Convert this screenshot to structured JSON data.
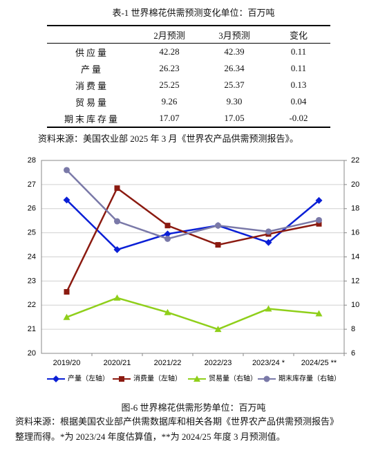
{
  "table": {
    "title": "表-1 世界棉花供需预测变化单位：百万吨",
    "header": [
      "",
      "2月预测",
      "3月预测",
      "变化"
    ],
    "rows": [
      [
        "供应量",
        "42.28",
        "42.39",
        "0.11"
      ],
      [
        "产量",
        "26.23",
        "26.34",
        "0.11"
      ],
      [
        "消费量",
        "25.25",
        "25.37",
        "0.13"
      ],
      [
        "贸易量",
        "9.26",
        "9.30",
        "0.04"
      ],
      [
        "期末库存量",
        "17.07",
        "17.05",
        "-0.02"
      ]
    ],
    "source": "资料来源：美国农业部 2025 年 3 月《世界农产品供需预测报告》。"
  },
  "chart_data": {
    "type": "line",
    "categories": [
      "2019/20",
      "2020/21",
      "2021/22",
      "2022/23",
      "2023/24 *",
      "2024/25 **"
    ],
    "ylim": [
      20,
      28
    ],
    "yticks": [
      20,
      21,
      22,
      23,
      24,
      25,
      26,
      27,
      28
    ],
    "y2lim": [
      6,
      22
    ],
    "y2ticks": [
      6,
      8,
      10,
      12,
      14,
      16,
      18,
      20,
      22
    ],
    "grid": true,
    "series": [
      {
        "name": "产量（左轴）",
        "color": "#0a1fd6",
        "marker": "diamond",
        "values": [
          26.36,
          24.3,
          24.95,
          25.3,
          24.6,
          26.34
        ]
      },
      {
        "name": "消费量（左轴）",
        "color": "#8b1a10",
        "marker": "square",
        "values": [
          22.55,
          26.85,
          25.3,
          24.5,
          24.95,
          25.37
        ]
      },
      {
        "name": "贸易量（右轴）",
        "color": "#8fcf1a",
        "marker": "triangle",
        "axis": "y2",
        "values": [
          9.0,
          10.6,
          9.4,
          8.0,
          9.7,
          9.3
        ]
      },
      {
        "name": "期末库存量（右轴）",
        "color": "#7a79a8",
        "marker": "circle",
        "axis": "y2",
        "values": [
          21.2,
          16.95,
          15.5,
          16.6,
          16.1,
          17.05
        ]
      }
    ]
  },
  "caption": {
    "title": "图-6 世界棉花供需形势单位：百万吨",
    "source": [
      "资料来源：根据美国农业部产供需数据库和相关各期《世界农产品供需预测报告》",
      "整理而得。*为 2023/24 年度估算值，**为 2024/25 年度 3 月预测值。"
    ]
  }
}
